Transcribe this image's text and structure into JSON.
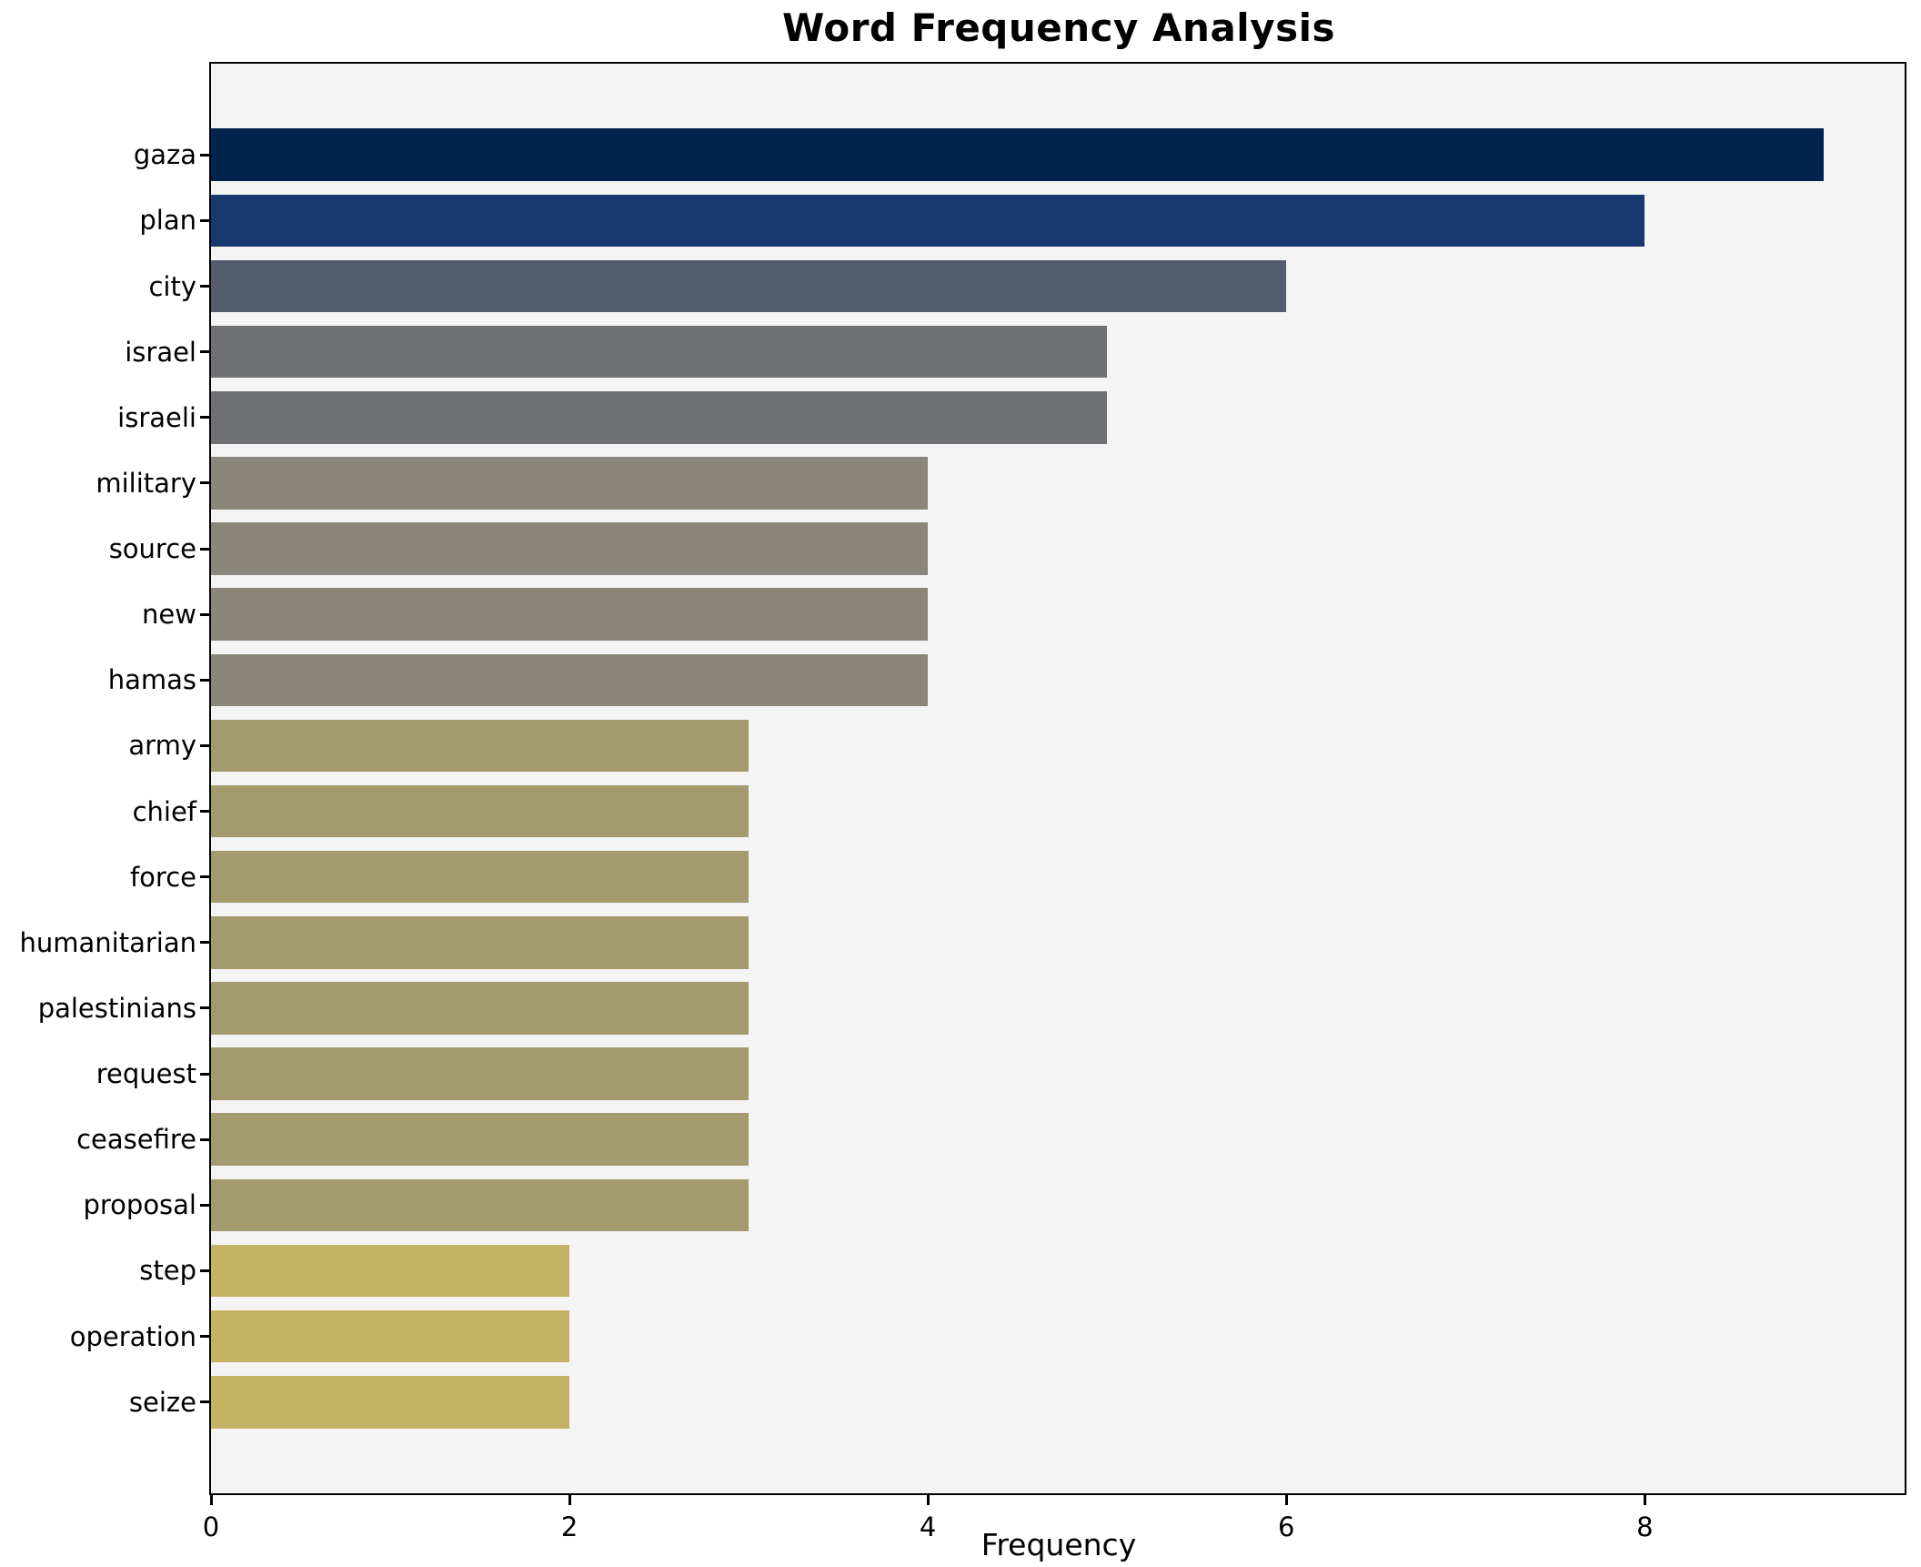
{
  "title": "Word Frequency Analysis",
  "chart_data": {
    "type": "bar",
    "orientation": "horizontal",
    "title": "Word Frequency Analysis",
    "xlabel": "Frequency",
    "ylabel": "",
    "categories": [
      "gaza",
      "plan",
      "city",
      "israel",
      "israeli",
      "military",
      "source",
      "new",
      "hamas",
      "army",
      "chief",
      "force",
      "humanitarian",
      "palestinians",
      "request",
      "ceasefire",
      "proposal",
      "step",
      "operation",
      "seize"
    ],
    "values": [
      9,
      8,
      6,
      5,
      5,
      4,
      4,
      4,
      4,
      3,
      3,
      3,
      3,
      3,
      3,
      3,
      3,
      2,
      2,
      2
    ],
    "xticks": [
      0,
      2,
      4,
      6,
      8
    ],
    "xlim": [
      0,
      9.45
    ],
    "bar_height_fraction": 0.8,
    "grid": false,
    "legend": null,
    "colors_by_value": {
      "9": "#03234f",
      "8": "#17396f",
      "6": "#555c6e",
      "5": "#6e7073",
      "4": "#8a877a",
      "3": "#a39a6e",
      "2": "#c3b363"
    },
    "plot_bg": "#f5f4f5",
    "figure_bg": "#ffffff",
    "spine_color": "#000000",
    "text_color": "#000000"
  }
}
